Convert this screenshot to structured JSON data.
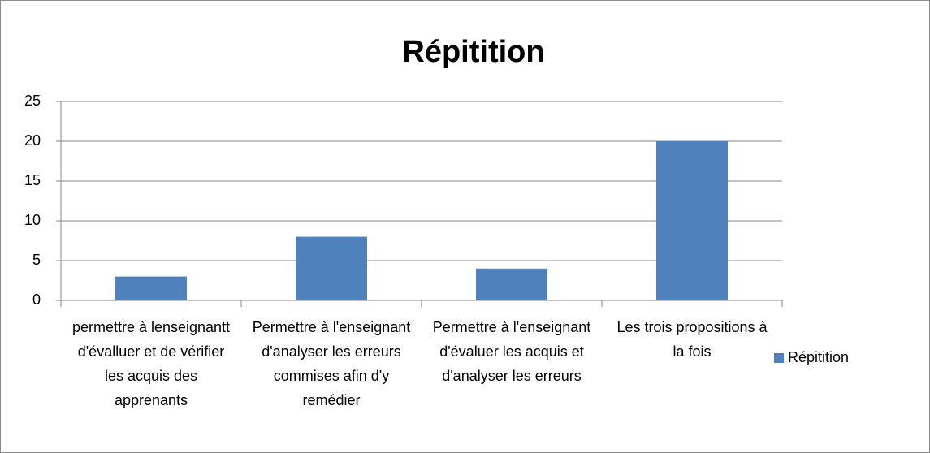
{
  "chart_data": {
    "type": "bar",
    "title": "Répitition",
    "categories": [
      "permettre à lenseignantt d'évalluer et de vérifier les acquis des apprenants",
      "Permettre à l'enseignant d'analyser les erreurs commises afin d'y remédier",
      "Permettre à l'enseignant d'évaluer les acquis et d'analyser les erreurs",
      "Les trois propositions à la fois"
    ],
    "series": [
      {
        "name": "Répitition",
        "color": "#4f81bd",
        "values": [
          3,
          8,
          4,
          20
        ]
      }
    ],
    "ylim": [
      0,
      25
    ],
    "yticks": [
      0,
      5,
      10,
      15,
      20,
      25
    ],
    "grid": true,
    "legend": "right"
  }
}
